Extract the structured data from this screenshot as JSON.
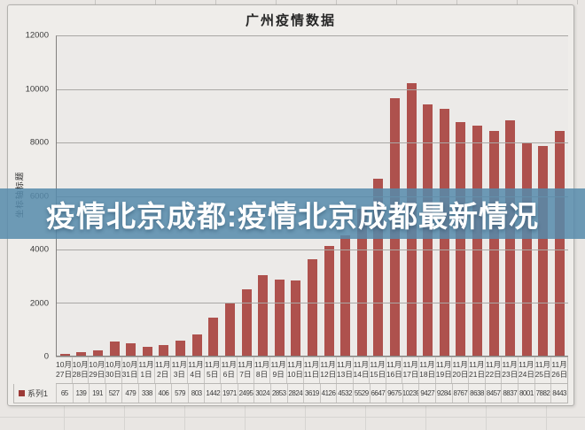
{
  "banner": {
    "text": "疫情北京成都:疫情北京成都最新情况",
    "color_hex": "#568BAC",
    "alpha": 0.85
  },
  "chart_data": {
    "type": "bar",
    "title": "广州疫情数据",
    "ylabel": "坐标轴标题",
    "xlabel": "",
    "series_name": "系列1",
    "ylim": [
      0,
      12000
    ],
    "y_ticks": [
      12000,
      10000,
      8000,
      6000,
      4000,
      2000,
      0
    ],
    "grid": true,
    "legend_position": "data-table-left",
    "categories": [
      "10月27日",
      "10月28日",
      "10月29日",
      "10月30日",
      "10月31日",
      "11月1日",
      "11月2日",
      "11月3日",
      "11月4日",
      "11月5日",
      "11月6日",
      "11月7日",
      "11月8日",
      "11月9日",
      "11月10日",
      "11月11日",
      "11月12日",
      "11月13日",
      "11月14日",
      "11月15日",
      "11月16日",
      "11月17日",
      "11月18日",
      "11月19日",
      "11月20日",
      "11月21日",
      "11月22日",
      "11月23日",
      "11月24日",
      "11月25日",
      "11月26日"
    ],
    "values": [
      65,
      139,
      191,
      527,
      479,
      338,
      406,
      579,
      803,
      1442,
      1971,
      2495,
      3024,
      2853,
      2824,
      3619,
      4126,
      4532,
      5529,
      6647,
      9675,
      10239,
      9427,
      9284,
      8767,
      8638,
      8457,
      8837,
      8001,
      7882,
      8443
    ],
    "colors": {
      "bar": "#ae514d",
      "legend_key": "#9c3a37",
      "plot_background": "#eceae8",
      "chart_background": "#efedea"
    }
  }
}
